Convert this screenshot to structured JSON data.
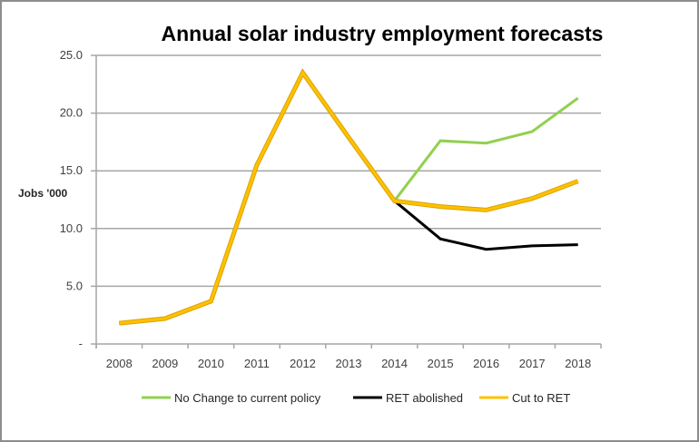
{
  "chart_data": {
    "type": "line",
    "title": "Annual solar industry employment forecasts",
    "xlabel": "",
    "ylabel": "Jobs '000",
    "categories": [
      "2008",
      "2009",
      "2010",
      "2011",
      "2012",
      "2013",
      "2014",
      "2015",
      "2016",
      "2017",
      "2018"
    ],
    "ylim": [
      0,
      25
    ],
    "yticks": [
      0,
      5,
      10,
      15,
      20,
      25
    ],
    "ytick_labels": [
      "-",
      "5.0",
      "10.0",
      "15.0",
      "20.0",
      "25.0"
    ],
    "grid": true,
    "legend_position": "bottom",
    "series": [
      {
        "name": "No Change to current policy",
        "color": "#92D050",
        "values": [
          1.8,
          2.2,
          3.7,
          15.5,
          23.5,
          17.9,
          12.4,
          17.6,
          17.4,
          18.4,
          21.3
        ]
      },
      {
        "name": "RET abolished",
        "color": "#000000",
        "values": [
          1.8,
          2.2,
          3.7,
          15.5,
          23.5,
          17.9,
          12.4,
          9.1,
          8.2,
          8.5,
          8.6
        ]
      },
      {
        "name": "Cut to RET",
        "color": "#FFC000",
        "values": [
          1.8,
          2.2,
          3.7,
          15.5,
          23.5,
          17.9,
          12.4,
          11.9,
          11.6,
          12.6,
          14.1
        ]
      }
    ]
  }
}
